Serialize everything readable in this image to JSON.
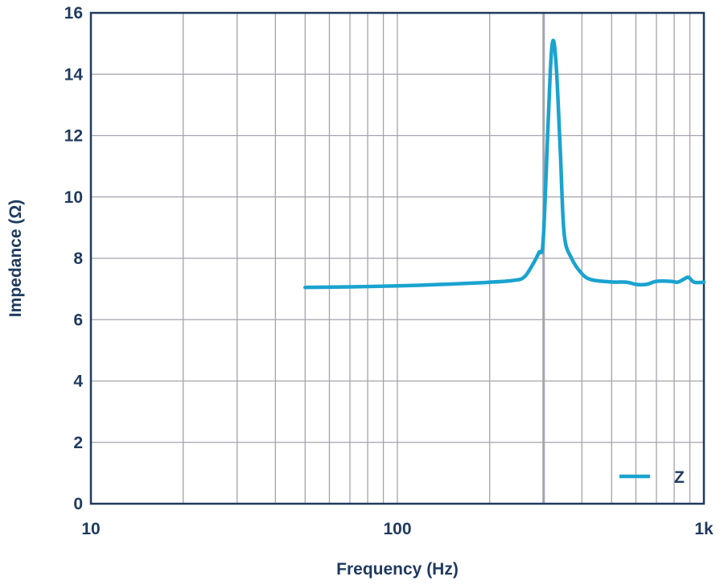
{
  "chart_data": {
    "type": "line",
    "xscale": "log",
    "xlim": [
      10,
      1000
    ],
    "ylim": [
      0,
      16
    ],
    "xticks": [
      {
        "value": 10,
        "label": "10"
      },
      {
        "value": 100,
        "label": "100"
      },
      {
        "value": 1000,
        "label": "1k"
      }
    ],
    "yticks": [
      {
        "value": 0,
        "label": "0"
      },
      {
        "value": 2,
        "label": "2"
      },
      {
        "value": 4,
        "label": "4"
      },
      {
        "value": 6,
        "label": "6"
      },
      {
        "value": 8,
        "label": "8"
      },
      {
        "value": 10,
        "label": "10"
      },
      {
        "value": 12,
        "label": "12"
      },
      {
        "value": 14,
        "label": "14"
      },
      {
        "value": 16,
        "label": "16"
      }
    ],
    "xlabel": "Frequency (Hz)",
    "ylabel": "Impedance (Ω)",
    "grid": true,
    "marker_line_x": 300,
    "legend_position": "bottom-right",
    "series": [
      {
        "name": "Z",
        "color": "#1aa3cf",
        "points": [
          [
            50,
            7.05
          ],
          [
            70,
            7.07
          ],
          [
            100,
            7.1
          ],
          [
            140,
            7.15
          ],
          [
            200,
            7.22
          ],
          [
            240,
            7.28
          ],
          [
            260,
            7.4
          ],
          [
            280,
            7.9
          ],
          [
            290,
            8.2
          ],
          [
            298,
            8.4
          ],
          [
            305,
            10.5
          ],
          [
            315,
            14.0
          ],
          [
            322,
            15.1
          ],
          [
            330,
            14.2
          ],
          [
            340,
            11.5
          ],
          [
            350,
            8.8
          ],
          [
            370,
            8.0
          ],
          [
            400,
            7.5
          ],
          [
            430,
            7.3
          ],
          [
            500,
            7.23
          ],
          [
            560,
            7.22
          ],
          [
            600,
            7.15
          ],
          [
            650,
            7.15
          ],
          [
            700,
            7.25
          ],
          [
            780,
            7.25
          ],
          [
            820,
            7.22
          ],
          [
            860,
            7.32
          ],
          [
            890,
            7.38
          ],
          [
            930,
            7.22
          ],
          [
            1000,
            7.22
          ]
        ]
      }
    ]
  }
}
